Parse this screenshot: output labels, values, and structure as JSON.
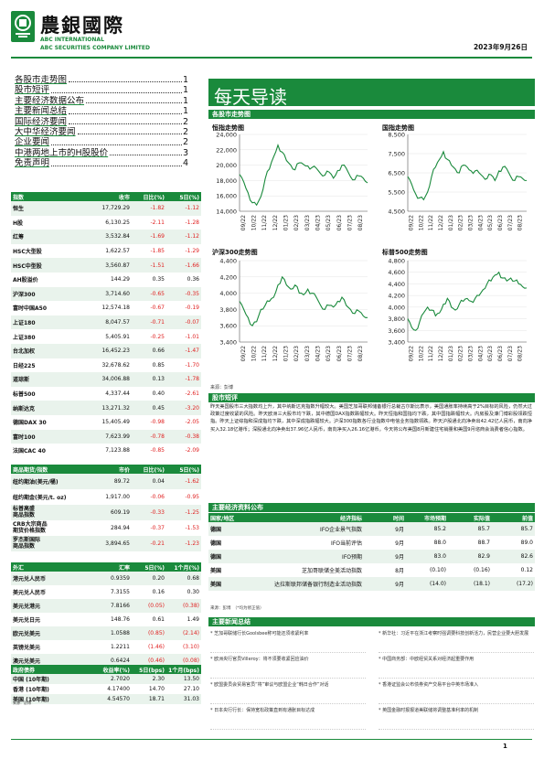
{
  "header": {
    "company_cn": "農銀國際",
    "company_en1": "ABC INTERNATIONAL",
    "company_en2": "ABC SECURITIES COMPANY LIMITED",
    "date": "2023年9月26日"
  },
  "toc": [
    {
      "t": "各股市走势图",
      "p": "1"
    },
    {
      "t": "股市短评",
      "p": "1"
    },
    {
      "t": "主要经济数据公布",
      "p": "1"
    },
    {
      "t": "主要新闻总结",
      "p": "1"
    },
    {
      "t": "国际经济要闻",
      "p": "2"
    },
    {
      "t": "大中华经济要闻",
      "p": "2"
    },
    {
      "t": "企业要闻",
      "p": "2"
    },
    {
      "t": "中港两地上市的H股股价",
      "p": "3"
    },
    {
      "t": "免责声明",
      "p": "4"
    }
  ],
  "banner": "每天导读",
  "charts_heading": "各股市走势图",
  "chart_data": [
    {
      "type": "line",
      "title": "恒指走势图",
      "ylim": [
        14000,
        24000
      ],
      "yticks": [
        "24,000",
        "22,000",
        "20,000",
        "18,000",
        "16,000",
        "14,000"
      ],
      "xticks": [
        "09/22",
        "10/22",
        "11/22",
        "12/22",
        "01/23",
        "02/23",
        "03/23",
        "04/23",
        "05/23",
        "06/23",
        "07/23",
        "08/23"
      ],
      "values": [
        18800,
        17800,
        16400,
        15100,
        14800,
        15900,
        18200,
        19500,
        21100,
        22600,
        21700,
        20600,
        20000,
        19400,
        20300,
        20100,
        19900,
        19700,
        19600,
        18900,
        18700,
        19100,
        18300,
        19300,
        20000,
        19600,
        18500,
        18100,
        18600,
        18300,
        17700
      ]
    },
    {
      "type": "line",
      "title": "国指走势图",
      "ylim": [
        4500,
        8500
      ],
      "yticks": [
        "8,500",
        "7,500",
        "6,500",
        "5,500",
        "4,500"
      ],
      "xticks": [
        "09/22",
        "10/22",
        "11/22",
        "12/22",
        "01/23",
        "02/23",
        "03/23",
        "04/23",
        "05/23",
        "06/23",
        "07/23",
        "08/23"
      ],
      "values": [
        6300,
        5900,
        5400,
        5200,
        5100,
        5500,
        6300,
        6800,
        7200,
        7600,
        7200,
        6900,
        6700,
        6500,
        6900,
        6800,
        6600,
        6600,
        6500,
        6300,
        6200,
        6400,
        6100,
        6600,
        6800,
        6700,
        6300,
        6100,
        6300,
        6200,
        6100
      ]
    },
    {
      "type": "line",
      "title": "沪深300走势图",
      "ylim": [
        3400,
        4400
      ],
      "yticks": [
        "4,400",
        "4,200",
        "4,000",
        "3,800",
        "3,600",
        "3,400"
      ],
      "xticks": [
        "09/22",
        "10/22",
        "11/22",
        "12/22",
        "01/23",
        "02/23",
        "03/23",
        "04/23",
        "05/23",
        "06/23",
        "07/23",
        "08/23"
      ],
      "values": [
        3900,
        3800,
        3700,
        3600,
        3650,
        3800,
        3850,
        3900,
        3950,
        4100,
        4200,
        4100,
        4050,
        4100,
        4000,
        3980,
        4050,
        4000,
        3950,
        3850,
        3800,
        3850,
        3830,
        3900,
        3950,
        3850,
        3800,
        3750,
        3780,
        3720,
        3700
      ]
    },
    {
      "type": "line",
      "title": "标普500走势图",
      "ylim": [
        3400,
        4800
      ],
      "yticks": [
        "4,800",
        "4,600",
        "4,400",
        "4,200",
        "4,000",
        "3,800",
        "3,600",
        "3,400"
      ],
      "xticks": [
        "09/22",
        "10/22",
        "11/22",
        "12/22",
        "01/23",
        "02/23",
        "03/23",
        "04/23",
        "05/23",
        "06/23",
        "07/23",
        "08/23"
      ],
      "values": [
        3800,
        3650,
        3600,
        3750,
        3900,
        4000,
        3950,
        3850,
        3900,
        4050,
        4150,
        4000,
        3950,
        4050,
        4100,
        4150,
        4100,
        4150,
        4200,
        4300,
        4400,
        4450,
        4550,
        4600,
        4500,
        4450,
        4500,
        4450,
        4400,
        4350,
        4330
      ]
    }
  ],
  "chart_source": "来源：彭博",
  "comment_heading": "股市短评",
  "comment": "昨天美国股市三大指数均上升，其中纳斯达克指数升幅较大。美国芝加哥联邦储备银行总裁古尔斯比表示，美国通胀率持续高于2%目标的风险，仍然大过政策过度收紧的风险。昨天欧洲三大股市均下跌，其中德国DAX指数跌幅较大。昨天恒指和国指均下跌，其中国指跌幅较大。内房股及濠门博彩股领跌恒指。昨天上证综指和深成指均下跌，其中深成指跌幅较大。沪深300指数各行业指数中电信业务指数领跌。昨天沪股通北向净卖出42.42亿人民币，南向净买入32.18亿港币；深股通北向净卖出37.96亿人民币，南向净买入26.16亿港币。今天将公布美国8月新建住宅销量和美国9月谘商会消费者信心指数。",
  "markets": {
    "headers": [
      "指数",
      "收市",
      "日比(%)",
      "5日(%)"
    ],
    "rows": [
      [
        "恒生",
        "17,729.29",
        "-1.82",
        "-1.12"
      ],
      [
        "H股",
        "6,130.25",
        "-2.11",
        "-1.28"
      ],
      [
        "红筹",
        "3,532.84",
        "-1.69",
        "-1.12"
      ],
      [
        "HSC大型股",
        "1,622.57",
        "-1.85",
        "-1.29"
      ],
      [
        "HSC中型股",
        "3,560.87",
        "-1.51",
        "-1.66"
      ],
      [
        "AH股溢价",
        "144.29",
        "0.35",
        "0.36"
      ],
      [
        "沪深300",
        "3,714.60",
        "-0.65",
        "-0.35"
      ],
      [
        "富时中国A50",
        "12,574.18",
        "-0.67",
        "-0.19"
      ],
      [
        "上证180",
        "8,047.57",
        "-0.71",
        "-0.07"
      ],
      [
        "上证380",
        "5,405.91",
        "-0.25",
        "-1.01"
      ],
      [
        "台北加权",
        "16,452.23",
        "0.66",
        "-1.47"
      ],
      [
        "日经225",
        "32,678.62",
        "0.85",
        "-1.70"
      ],
      [
        "道琼斯",
        "34,006.88",
        "0.13",
        "-1.78"
      ],
      [
        "标普500",
        "4,337.44",
        "0.40",
        "-2.61"
      ],
      [
        "纳斯达克",
        "13,271.32",
        "0.45",
        "-3.20"
      ],
      [
        "德国DAX 30",
        "15,405.49",
        "-0.98",
        "-2.05"
      ],
      [
        "富时100",
        "7,623.99",
        "-0.78",
        "-0.38"
      ],
      [
        "法国CAC 40",
        "7,123.88",
        "-0.85",
        "-2.09"
      ]
    ]
  },
  "commodities": {
    "headers": [
      "商品期货/指数",
      "市价",
      "日比(%)",
      "5日(%)"
    ],
    "rows": [
      [
        "纽约期油(美元/桶)",
        "89.72",
        "0.04",
        "-1.62"
      ],
      [
        "纽约期金(美元/t. oz)",
        "1,917.00",
        "-0.06",
        "-0.95"
      ],
      [
        "标普高盛\n商品指数",
        "609.19",
        "-0.33",
        "-1.25"
      ],
      [
        "CRB大宗商品\n期货价格指数",
        "284.94",
        "-0.37",
        "-1.53"
      ],
      [
        "罗杰斯国际\n商品指数",
        "3,894.65",
        "-0.21",
        "-1.23"
      ]
    ]
  },
  "fx": {
    "headers": [
      "外汇",
      "汇率",
      "5日(%)",
      "1个月(%)"
    ],
    "rows": [
      [
        "港元兑人民币",
        "0.9359",
        "0.20",
        "0.68"
      ],
      [
        "美元兑人民币",
        "7.3155",
        "0.16",
        "0.30"
      ],
      [
        "美元兑港元",
        "7.8166",
        "(0.05)",
        "(0.38)"
      ],
      [
        "美元兑日元",
        "148.76",
        "0.61",
        "1.49"
      ],
      [
        "欧元兑美元",
        "1.0588",
        "(0.85)",
        "(2.14)"
      ],
      [
        "英镑兑美元",
        "1.2211",
        "(1.46)",
        "(3.10)"
      ],
      [
        "澳元兑美元",
        "0.6424",
        "(0.46)",
        "(0.08)"
      ]
    ]
  },
  "bonds": {
    "headers": [
      "政府债券",
      "收益率(%)",
      "5日(bps)",
      "1个月(bps)"
    ],
    "rows": [
      [
        "中国 (10年期)",
        "2.7020",
        "2.30",
        "13.50"
      ],
      [
        "香港 (10年期)",
        "4.17400",
        "14.70",
        "27.10"
      ],
      [
        "美国 (10年期)",
        "4.54570",
        "18.71",
        "31.03"
      ]
    ],
    "source": "来源：彭博"
  },
  "econ": {
    "title": "主要经济资料公布",
    "headers": [
      "国家/地区",
      "经济指标",
      "时间",
      "市场预期",
      "实际值",
      "前值"
    ],
    "rows": [
      [
        "德国",
        "IFO企业景气指数",
        "9月",
        "85.2",
        "85.7",
        "85.7"
      ],
      [
        "德国",
        "IFO当前评估",
        "9月",
        "88.0",
        "88.7",
        "89.0"
      ],
      [
        "德国",
        "IFO预期",
        "9月",
        "83.0",
        "82.9",
        "82.6"
      ],
      [
        "美国",
        "芝加哥联储全美活动指数",
        "8月",
        "(0.10)",
        "(0.16)",
        "0.12"
      ],
      [
        "美国",
        "达拉斯联邦储备银行制造业活动指数",
        "9月",
        "(14.0)",
        "(18.1)",
        "(17.2)"
      ]
    ],
    "source": "来源：彭博　（*均为修正值）"
  },
  "news": {
    "title": "主要新闻总结",
    "left": [
      "芝加哥联储行长Goolsbee称可能还须收紧利率",
      "欧洲央行官员Villeroy：将不须要收紧回应油价",
      "欧盟委员会贸易官员“将”审议与欧盟企业“韩日合作”对话",
      "日本央行行长：保持宽松政策直到有通胀目标达成"
    ],
    "right": [
      "新华社：习近平在浙江考察时强调要科技创新活力，民营企业要大胆发展",
      "中国商务部：中欧经贸关系对经济起重要作用",
      "香港证监会公布债券资产交易平台中英市场准入",
      "英国金融时报报道美联储将调整基准利率的机制"
    ]
  },
  "footer": {
    "page": "1"
  }
}
